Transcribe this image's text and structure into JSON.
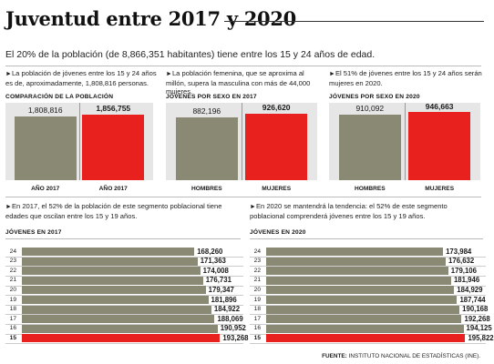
{
  "title": "Juventud entre 2017 y 2020",
  "subtitle": "El 20% de la población (de 8,866,351 habitantes) tiene entre los 15 y 24 años de edad.",
  "colors": {
    "gray": "#8a8a74",
    "red": "#e8211f",
    "panel_bg": "#e6e6e6"
  },
  "panels": [
    {
      "note": "La población de jóvenes entre los 15 y 24 años es de, aproximadamente, 1,808,816 personas.",
      "chart_title": "COMPARACIÓN DE LA POBLACIÓN"
    },
    {
      "note": "La población femenina, que se aproxima al millón, supera la masculina con más de 44,000 mujeres.",
      "chart_title": "JÓVENES POR SEXO EN 2017"
    },
    {
      "note": "El 51% de jóvenes entre los 15 y 24 años serán mujeres en 2020.",
      "chart_title": "JÓVENES POR SEXO EN 2020"
    },
    {
      "note": "En 2017, el 52% de la población de este segmento poblacional tiene edades que oscilan entre los 15 y 19 años.",
      "chart_title": "JÓVENES EN 2017"
    },
    {
      "note": "En 2020 se mantendrá la tendencia: el 52% de este segmento poblacional comprenderá jóvenes entre los 15 y 19 años.",
      "chart_title": "JÓVENES EN 2020"
    }
  ],
  "chart_data": [
    {
      "type": "bar",
      "title": "COMPARACIÓN DE LA POBLACIÓN",
      "categories": [
        "AÑO 2017",
        "AÑO 2017"
      ],
      "values": [
        1808816,
        1856755
      ],
      "value_labels": [
        "1,808,816",
        "1,856,755"
      ],
      "colors": [
        "#8a8a74",
        "#e8211f"
      ],
      "ylim": [
        0,
        2200000
      ]
    },
    {
      "type": "bar",
      "title": "JÓVENES POR SEXO EN 2017",
      "categories": [
        "HOMBRES",
        "MUJERES"
      ],
      "values": [
        882196,
        926620
      ],
      "value_labels": [
        "882,196",
        "926,620"
      ],
      "colors": [
        "#8a8a74",
        "#e8211f"
      ],
      "ylim": [
        0,
        1080000
      ]
    },
    {
      "type": "bar",
      "title": "JÓVENES POR SEXO EN 2020",
      "categories": [
        "HOMBRES",
        "MUJERES"
      ],
      "values": [
        910092,
        946663
      ],
      "value_labels": [
        "910,092",
        "946,663"
      ],
      "colors": [
        "#8a8a74",
        "#e8211f"
      ],
      "ylim": [
        0,
        1080000
      ]
    },
    {
      "type": "bar",
      "orientation": "horizontal",
      "title": "JÓVENES EN 2017",
      "categories": [
        "24",
        "23",
        "22",
        "21",
        "20",
        "19",
        "18",
        "17",
        "16",
        "15"
      ],
      "values": [
        168260,
        171363,
        174008,
        176731,
        179347,
        181896,
        184922,
        188069,
        190952,
        193268
      ],
      "value_labels": [
        "168,260",
        "171,363",
        "174,008",
        "176,731",
        "179,347",
        "181,896",
        "184,922",
        "188,069",
        "190,952",
        "193,268"
      ],
      "highlight": "15",
      "xlim": [
        0,
        225000
      ]
    },
    {
      "type": "bar",
      "orientation": "horizontal",
      "title": "JÓVENES EN 2020",
      "categories": [
        "24",
        "23",
        "22",
        "21",
        "20",
        "19",
        "18",
        "17",
        "16",
        "15"
      ],
      "values": [
        173984,
        176632,
        179106,
        181946,
        184929,
        187744,
        190168,
        192268,
        194125,
        195822
      ],
      "value_labels": [
        "173,984",
        "176,632",
        "179,106",
        "181,946",
        "184,929",
        "187,744",
        "190,168",
        "192,268",
        "194,125",
        "195,822"
      ],
      "highlight": "15",
      "xlim": [
        0,
        225000
      ]
    }
  ],
  "source": {
    "label": "FUENTE:",
    "text": "INSTITUTO NACIONAL DE ESTADÍSTICAS (INE)."
  }
}
